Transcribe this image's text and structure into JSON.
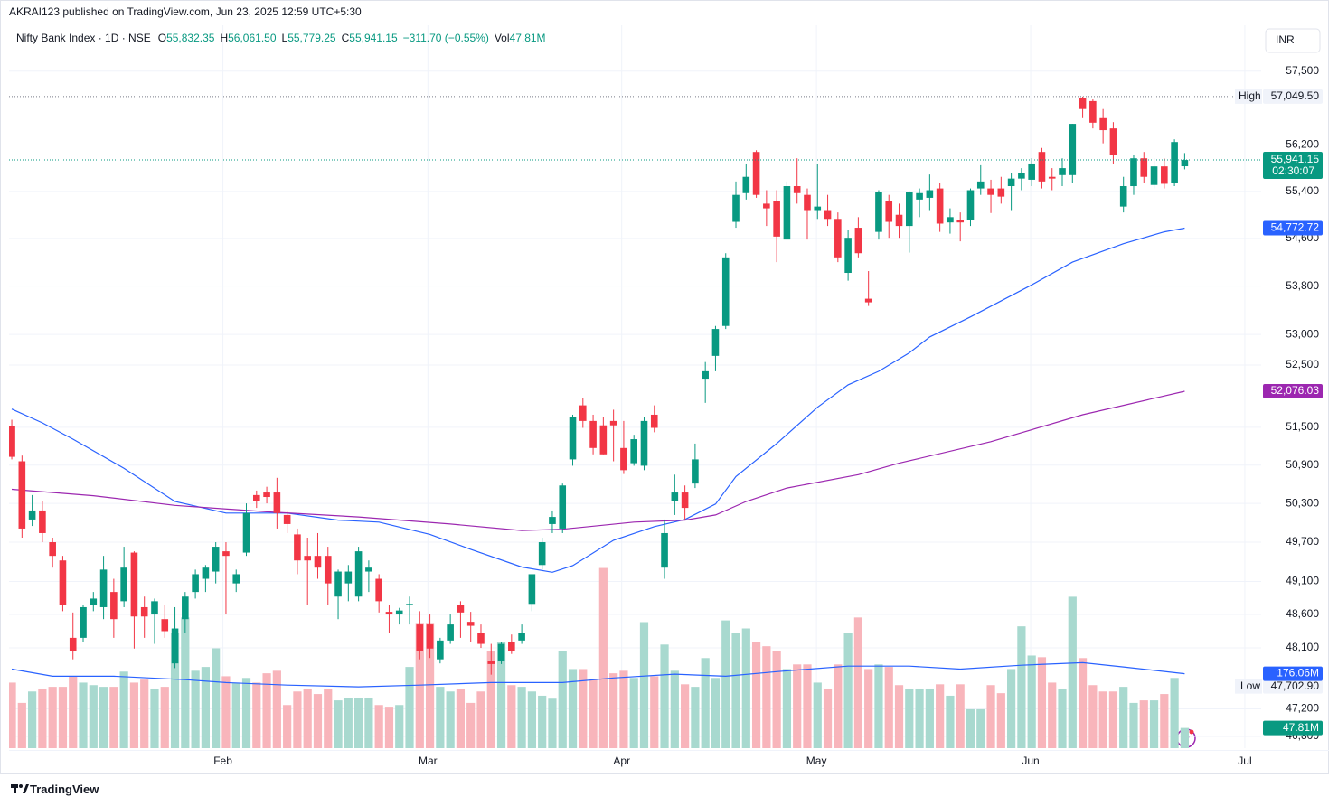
{
  "chart_data": {
    "type": "candlestick",
    "header": "AKRAI123 published on TradingView.com, Jun 23, 2025 12:59 UTC+5:30",
    "currency": "INR",
    "footer": "TradingView",
    "legend": {
      "symbol": "Nifty Bank Index · 1D · NSE",
      "items": [
        {
          "key": "O",
          "text": "55,832.35"
        },
        {
          "key": "H",
          "text": "56,061.50"
        },
        {
          "key": "L",
          "text": "55,779.25"
        },
        {
          "key": "C",
          "text": "55,941.15"
        }
      ],
      "change": "−311.70 (−0.55%)",
      "vol_key": "Vol",
      "vol_text": "47.81M"
    },
    "log_scale": true,
    "grid": true,
    "up_color": "#089981",
    "down_color": "#f23645",
    "volume_up_color": "#a8d9cf",
    "volume_down_color": "#f8b5bb",
    "xlim": [
      -0.27,
      122.5
    ],
    "xticks": [
      {
        "value": 20.7,
        "label": "Feb"
      },
      {
        "value": 40.8,
        "label": "Mar"
      },
      {
        "value": 59.8,
        "label": "Apr"
      },
      {
        "value": 78.9,
        "label": "May"
      },
      {
        "value": 99.9,
        "label": "Jun"
      },
      {
        "value": 120.9,
        "label": "Jul"
      }
    ],
    "ylim": [
      46630,
      58290
    ],
    "yticks": [
      {
        "value": 46800,
        "label": "46,800"
      },
      {
        "value": 47200,
        "label": "47,200"
      },
      {
        "value": 48100,
        "label": "48,100"
      },
      {
        "value": 48600,
        "label": "48,600"
      },
      {
        "value": 49100,
        "label": "49,100"
      },
      {
        "value": 49700,
        "label": "49,700"
      },
      {
        "value": 50300,
        "label": "50,300"
      },
      {
        "value": 50900,
        "label": "50,900"
      },
      {
        "value": 51500,
        "label": "51,500"
      },
      {
        "value": 52500,
        "label": "52,500"
      },
      {
        "value": 53000,
        "label": "53,000"
      },
      {
        "value": 53800,
        "label": "53,800"
      },
      {
        "value": 54600,
        "label": "54,600"
      },
      {
        "value": 55400,
        "label": "55,400"
      },
      {
        "value": 56200,
        "label": "56,200"
      },
      {
        "value": 57500,
        "label": "57,500"
      }
    ],
    "vlim": [
      0,
      440
    ],
    "open": [
      51520,
      50960,
      50050,
      50190,
      49700,
      49420,
      48250,
      48250,
      48740,
      48710,
      48940,
      48800,
      49540,
      48710,
      48600,
      48530,
      47870,
      48530,
      48940,
      49140,
      49250,
      49560,
      49070,
      49540,
      50430,
      50470,
      50470,
      50120,
      49820,
      49490,
      49490,
      49490,
      48870,
      49070,
      48870,
      49250,
      49140,
      48640,
      48600,
      48740,
      48450,
      48450,
      47930,
      48210,
      48740,
      48490,
      48320,
      47900,
      47910,
      48190,
      48210,
      48760,
      49350,
      49980,
      49910,
      50990,
      51850,
      51600,
      51530,
      51600,
      51170,
      50930,
      50890,
      51700,
      49310,
      50330,
      50470,
      50610,
      52280,
      52650,
      53140,
      54880,
      55370,
      56080,
      55190,
      55230,
      54580,
      55490,
      55340,
      55080,
      55080,
      54930,
      54020,
      54780,
      53590,
      54710,
      55230,
      55000,
      54810,
      55260,
      55290,
      55450,
      54870,
      54910,
      54910,
      55450,
      55450,
      55450,
      55490,
      55620,
      55600,
      56080,
      55650,
      55680,
      55680,
      57020,
      56970,
      56670,
      56490,
      55140,
      55490,
      55970,
      55510,
      55830,
      55540,
      55832.35
    ],
    "high": [
      51620,
      51050,
      50430,
      50330,
      49770,
      49490,
      48630,
      48740,
      48940,
      49490,
      49140,
      49630,
      49560,
      48870,
      48840,
      48740,
      48710,
      48940,
      49280,
      49350,
      49700,
      49700,
      49280,
      50300,
      50500,
      50560,
      50700,
      50190,
      49910,
      49770,
      49840,
      49630,
      49280,
      49350,
      49630,
      49420,
      49210,
      48740,
      48700,
      48870,
      48650,
      48600,
      48250,
      48600,
      48800,
      48640,
      48450,
      48160,
      48190,
      48300,
      48450,
      49210,
      49770,
      50190,
      50610,
      51700,
      51970,
      51700,
      51670,
      51780,
      51600,
      51380,
      51670,
      51850,
      50050,
      50750,
      50580,
      51240,
      52550,
      53140,
      54350,
      55570,
      55880,
      56110,
      55420,
      55420,
      55570,
      55970,
      55450,
      55880,
      55340,
      55040,
      54750,
      54960,
      54050,
      55420,
      55340,
      55190,
      55400,
      55450,
      55690,
      55540,
      55110,
      55040,
      55450,
      55850,
      55600,
      55650,
      55720,
      55800,
      55970,
      56150,
      55800,
      55970,
      56570,
      57049.5,
      57000,
      56830,
      56600,
      55650,
      56030,
      56080,
      55970,
      55970,
      56300,
      56061.5
    ],
    "low": [
      50990,
      49770,
      49950,
      49700,
      49310,
      48650,
      47930,
      48190,
      48650,
      48530,
      48250,
      48710,
      48090,
      48250,
      48160,
      48250,
      47800,
      48320,
      48840,
      48940,
      49070,
      48600,
      48940,
      49490,
      50230,
      50300,
      49910,
      49840,
      49210,
      48750,
      49140,
      48740,
      48530,
      48800,
      48800,
      48940,
      48630,
      48320,
      48450,
      48450,
      47930,
      47950,
      47870,
      48160,
      48250,
      48190,
      48100,
      47702.9,
      47860,
      48010,
      48160,
      48650,
      49280,
      49840,
      49840,
      50890,
      51490,
      51070,
      51070,
      50960,
      50760,
      50890,
      50820,
      51420,
      49140,
      50120,
      50050,
      50540,
      51890,
      52400,
      53090,
      54780,
      55260,
      55290,
      54810,
      54200,
      54580,
      55190,
      54580,
      54930,
      54810,
      54200,
      53890,
      54280,
      53470,
      54580,
      54610,
      54610,
      54360,
      54960,
      55080,
      54710,
      54680,
      54550,
      54810,
      55340,
      55030,
      55190,
      55080,
      55420,
      55490,
      55450,
      55420,
      55490,
      55540,
      56670,
      56490,
      56230,
      55880,
      55040,
      55340,
      55540,
      55450,
      55450,
      55490,
      55779.25
    ],
    "close": [
      51030,
      49910,
      50190,
      49840,
      49490,
      48740,
      48060,
      48710,
      48840,
      49280,
      48530,
      49310,
      48570,
      48570,
      48800,
      48350,
      48390,
      48870,
      49210,
      49310,
      49630,
      49490,
      49210,
      50150,
      50330,
      50400,
      50150,
      49980,
      49420,
      49420,
      49310,
      49070,
      49250,
      49250,
      49560,
      49310,
      48800,
      48600,
      48660,
      48760,
      48060,
      48090,
      48210,
      48450,
      48630,
      48430,
      48160,
      47860,
      48160,
      48060,
      48320,
      49210,
      49700,
      50090,
      50580,
      51670,
      51600,
      51170,
      51070,
      51530,
      50820,
      51310,
      51600,
      51490,
      49840,
      50470,
      50230,
      50990,
      52400,
      53090,
      54280,
      55340,
      55650,
      55340,
      55110,
      54630,
      55490,
      55370,
      55080,
      55140,
      54930,
      54280,
      54610,
      54350,
      53530,
      55390,
      54880,
      54810,
      55390,
      55370,
      55420,
      54850,
      54960,
      54870,
      55420,
      55570,
      55340,
      55310,
      55620,
      55720,
      55880,
      55570,
      55620,
      55800,
      56570,
      56830,
      56590,
      56460,
      56030,
      55490,
      55970,
      55650,
      55830,
      55530,
      56252.85,
      55941.15
    ],
    "volume": [
      155,
      107,
      134,
      141,
      145,
      145,
      170,
      155,
      149,
      145,
      145,
      181,
      155,
      162,
      141,
      145,
      273,
      309,
      183,
      192,
      236,
      170,
      155,
      166,
      155,
      177,
      183,
      102,
      134,
      141,
      128,
      141,
      113,
      119,
      119,
      119,
      102,
      98,
      102,
      192,
      294,
      294,
      145,
      134,
      141,
      107,
      134,
      230,
      251,
      149,
      145,
      134,
      124,
      117,
      230,
      187,
      187,
      162,
      426,
      177,
      183,
      166,
      298,
      170,
      245,
      183,
      151,
      145,
      213,
      166,
      302,
      273,
      283,
      251,
      241,
      230,
      187,
      198,
      198,
      155,
      141,
      198,
      273,
      309,
      187,
      198,
      192,
      149,
      141,
      141,
      141,
      151,
      124,
      151,
      92,
      92,
      149,
      130,
      187,
      288,
      219,
      215,
      155,
      141,
      358,
      213,
      149,
      134,
      134,
      145,
      107,
      113,
      113,
      128,
      166,
      47.81
    ],
    "volume_tag_label": "47.81M",
    "volume_ma": {
      "color": "#2962ff",
      "x": [
        0,
        4,
        10,
        17,
        21,
        27,
        34,
        40,
        47,
        54,
        59,
        65,
        70,
        75,
        82,
        88,
        93,
        99,
        105,
        109,
        115
      ],
      "values": [
        187,
        170,
        170,
        162,
        155,
        149,
        145,
        149,
        155,
        155,
        166,
        175,
        170,
        181,
        194,
        194,
        187,
        196,
        202,
        192,
        176.06
      ],
      "tag_label": "176.06M"
    },
    "lines": [
      {
        "color": "#2962ff",
        "x": [
          0,
          3,
          6,
          11,
          16,
          21,
          27,
          32,
          36,
          41,
          45,
          50,
          53,
          55,
          59,
          63,
          66,
          69,
          71,
          75,
          79,
          82,
          85,
          88,
          90,
          94,
          100,
          104,
          109,
          113,
          115
        ],
        "values": [
          51790,
          51570,
          51310,
          50850,
          50330,
          50150,
          50150,
          50040,
          50010,
          49820,
          49590,
          49320,
          49240,
          49340,
          49730,
          49940,
          50050,
          50290,
          50720,
          51240,
          51820,
          52180,
          52400,
          52700,
          52960,
          53290,
          53820,
          54200,
          54510,
          54710,
          54772.72
        ],
        "tag_label": "54,772.72"
      },
      {
        "color": "#9c27b0",
        "x": [
          0,
          8,
          16,
          25,
          34,
          43,
          50,
          54,
          61,
          66,
          69,
          72,
          76,
          83,
          87,
          96,
          105,
          115
        ],
        "values": [
          50520,
          50420,
          50270,
          50170,
          50090,
          49980,
          49880,
          49900,
          50010,
          50040,
          50120,
          50330,
          50540,
          50750,
          50930,
          51270,
          51700,
          52076.03
        ],
        "tag_label": "52,076.03"
      }
    ],
    "high_marker": {
      "label": "High",
      "value": 57049.5,
      "value_label": "57,049.50"
    },
    "low_marker": {
      "label": "Low",
      "value": 47702.9,
      "value_label": "47,702.90"
    },
    "last_price": {
      "value": 55941.15,
      "value_label": "55,941.15",
      "countdown": "02:30:07"
    }
  }
}
